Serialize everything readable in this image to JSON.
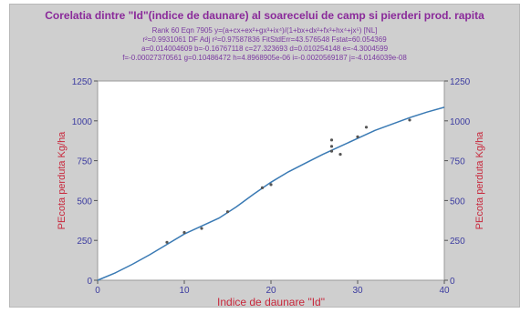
{
  "colors": {
    "title": "#8a2a9a",
    "stats": "#7a3aa0",
    "axis_label": "#c8283c",
    "tick_label": "#3c3ca0",
    "curve": "#3a7ab4",
    "points": "#555555",
    "plot_bg": "#ffffff",
    "frame_bg": "#cfcfcf"
  },
  "chart_data": {
    "type": "scatter",
    "title": "Corelatia dintre \"Id\"(indice de daunare) al soarecelui de camp si pierderi prod. rapita",
    "stats_lines": [
      "Rank 60  Eqn 7905  y=(a+cx+ex²+gx³+ix⁴)/(1+bx+dx²+fx³+hx⁴+jx⁵) [NL]",
      "r²=0.9931061  DF Adj r²=0.97587836  FitStdErr=43.576548  Fstat=60.054369",
      "a=0.014004609 b=-0.16767118 c=27.323693 d=0.010254148 e=-4.3004599",
      "f=-0.00027370561 g=0.10486472 h=4.8968905e-06 i=-0.0020569187 j=-4.0146039e-08"
    ],
    "xlabel": "Indice de daunare \"Id\"",
    "ylabel_left": "PEcota perduta Kg/ha",
    "ylabel_right": "PEcota perduta Kg/ha",
    "xlim": [
      0,
      40
    ],
    "ylim": [
      0,
      1250
    ],
    "xticks": [
      0,
      10,
      20,
      30,
      40
    ],
    "yticks": [
      0,
      250,
      500,
      750,
      1000,
      1250
    ],
    "grid": false,
    "points": [
      {
        "x": 8,
        "y": 238
      },
      {
        "x": 10,
        "y": 300
      },
      {
        "x": 12,
        "y": 325
      },
      {
        "x": 15,
        "y": 430
      },
      {
        "x": 19,
        "y": 580
      },
      {
        "x": 20,
        "y": 600
      },
      {
        "x": 27,
        "y": 880
      },
      {
        "x": 27,
        "y": 840
      },
      {
        "x": 27,
        "y": 810
      },
      {
        "x": 28,
        "y": 790
      },
      {
        "x": 30,
        "y": 900
      },
      {
        "x": 31,
        "y": 960
      },
      {
        "x": 36,
        "y": 1005
      }
    ],
    "fit_curve": {
      "name": "",
      "x": [
        0,
        2,
        4,
        6,
        8,
        10,
        12,
        14,
        16,
        18,
        20,
        22,
        24,
        26,
        28,
        30,
        32,
        34,
        36,
        38,
        40
      ],
      "y": [
        0,
        45,
        100,
        160,
        225,
        290,
        340,
        390,
        460,
        540,
        615,
        680,
        735,
        790,
        840,
        890,
        940,
        980,
        1020,
        1055,
        1085
      ]
    }
  }
}
